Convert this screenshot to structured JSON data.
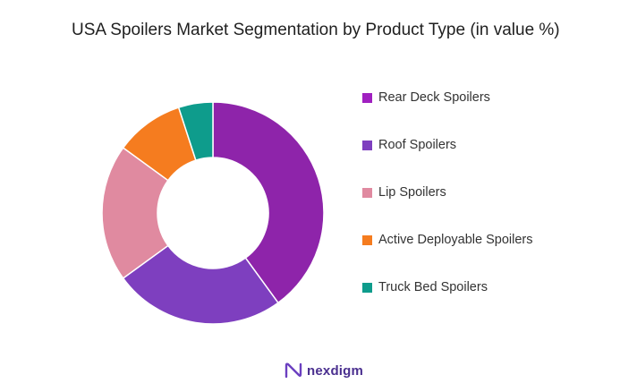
{
  "title": "USA Spoilers Market Segmentation by Product Type (in value %)",
  "brand": {
    "name": "nexdigm",
    "color": "#4a2f8f"
  },
  "chart_data": {
    "type": "pie",
    "donut": true,
    "title": "USA Spoilers Market Segmentation by Product Type (in value %)",
    "categories": [
      "Rear Deck Spoilers",
      "Roof Spoilers",
      "Lip Spoilers",
      "Active Deployable Spoilers",
      "Truck Bed Spoilers"
    ],
    "values": [
      40,
      25,
      20,
      10,
      5
    ],
    "colors": [
      "#8e24aa",
      "#7e3fbf",
      "#e08aa0",
      "#f57c1f",
      "#0e9c8c"
    ],
    "legend_position": "right"
  },
  "legend": [
    {
      "label": "Rear Deck Spoilers",
      "color": "#a020c0"
    },
    {
      "label": "Roof Spoilers",
      "color": "#7e3fbf"
    },
    {
      "label": "Lip Spoilers",
      "color": "#e08aa0"
    },
    {
      "label": "Active Deployable Spoilers",
      "color": "#f57c1f"
    },
    {
      "label": "Truck Bed Spoilers",
      "color": "#0e9c8c"
    }
  ]
}
